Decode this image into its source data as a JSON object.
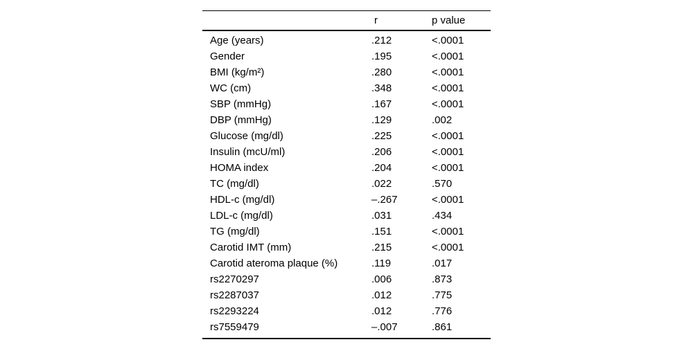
{
  "table": {
    "columns": {
      "r": "r",
      "p": "p value"
    },
    "rows": [
      {
        "label": "Age (years)",
        "r": ".212",
        "p": "<.0001"
      },
      {
        "label": "Gender",
        "r": ".195",
        "p": "<.0001"
      },
      {
        "label": "BMI (kg/m²)",
        "r": ".280",
        "p": "<.0001"
      },
      {
        "label": "WC (cm)",
        "r": ".348",
        "p": "<.0001"
      },
      {
        "label": "SBP (mmHg)",
        "r": ".167",
        "p": "<.0001"
      },
      {
        "label": "DBP (mmHg)",
        "r": ".129",
        "p": ".002"
      },
      {
        "label": "Glucose (mg/dl)",
        "r": ".225",
        "p": "<.0001"
      },
      {
        "label": "Insulin (mcU/ml)",
        "r": ".206",
        "p": "<.0001"
      },
      {
        "label": "HOMA index",
        "r": ".204",
        "p": "<.0001"
      },
      {
        "label": "TC (mg/dl)",
        "r": ".022",
        "p": ".570"
      },
      {
        "label": "HDL-c (mg/dl)",
        "r": "–.267",
        "p": "<.0001"
      },
      {
        "label": "LDL-c (mg/dl)",
        "r": ".031",
        "p": ".434"
      },
      {
        "label": "TG (mg/dl)",
        "r": ".151",
        "p": "<.0001"
      },
      {
        "label": "Carotid IMT (mm)",
        "r": ".215",
        "p": "<.0001"
      },
      {
        "label": "Carotid ateroma plaque (%)",
        "r": ".119",
        "p": ".017"
      },
      {
        "label": "rs2270297",
        "r": ".006",
        "p": ".873"
      },
      {
        "label": "rs2287037",
        "r": ".012",
        "p": ".775"
      },
      {
        "label": "rs2293224",
        "r": ".012",
        "p": ".776"
      },
      {
        "label": "rs7559479",
        "r": "–.007",
        "p": ".861"
      }
    ],
    "text_color": "#000000",
    "rule_color": "#000000"
  }
}
